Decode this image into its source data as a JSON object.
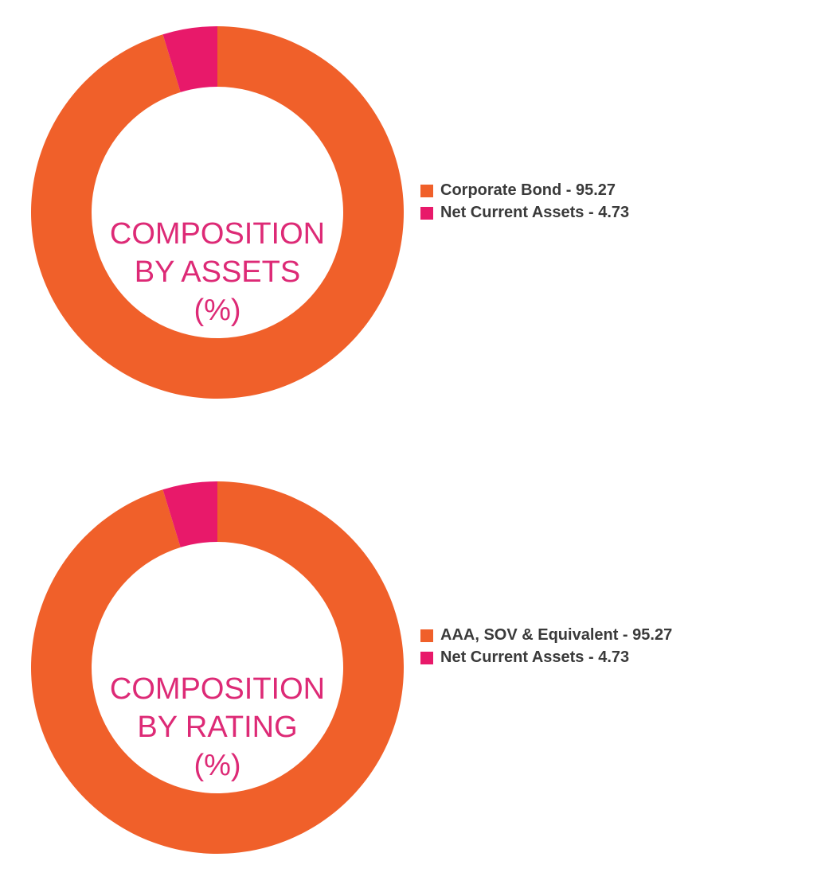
{
  "chart_data": [
    {
      "type": "pie",
      "donut": true,
      "center_label": [
        "COMPOSITION",
        "BY ASSETS",
        "(%)"
      ],
      "categories": [
        "Corporate Bond",
        "Net Current Assets"
      ],
      "values": [
        95.27,
        4.73
      ],
      "colors": [
        "#f0602a",
        "#e8196a"
      ],
      "legend_labels": [
        "Corporate Bond - 95.27",
        "Net Current Assets - 4.73"
      ],
      "legend_position": "right"
    },
    {
      "type": "pie",
      "donut": true,
      "center_label": [
        "COMPOSITION",
        "BY RATING",
        "(%)"
      ],
      "categories": [
        "AAA, SOV & Equivalent",
        "Net Current Assets"
      ],
      "values": [
        95.27,
        4.73
      ],
      "colors": [
        "#f0602a",
        "#e8196a"
      ],
      "legend_labels": [
        "AAA, SOV & Equivalent - 95.27",
        "Net Current Assets - 4.73"
      ],
      "legend_position": "right"
    }
  ],
  "colors": {
    "center_text": "#dd2a76",
    "legend_text": "#3a3a3a"
  }
}
